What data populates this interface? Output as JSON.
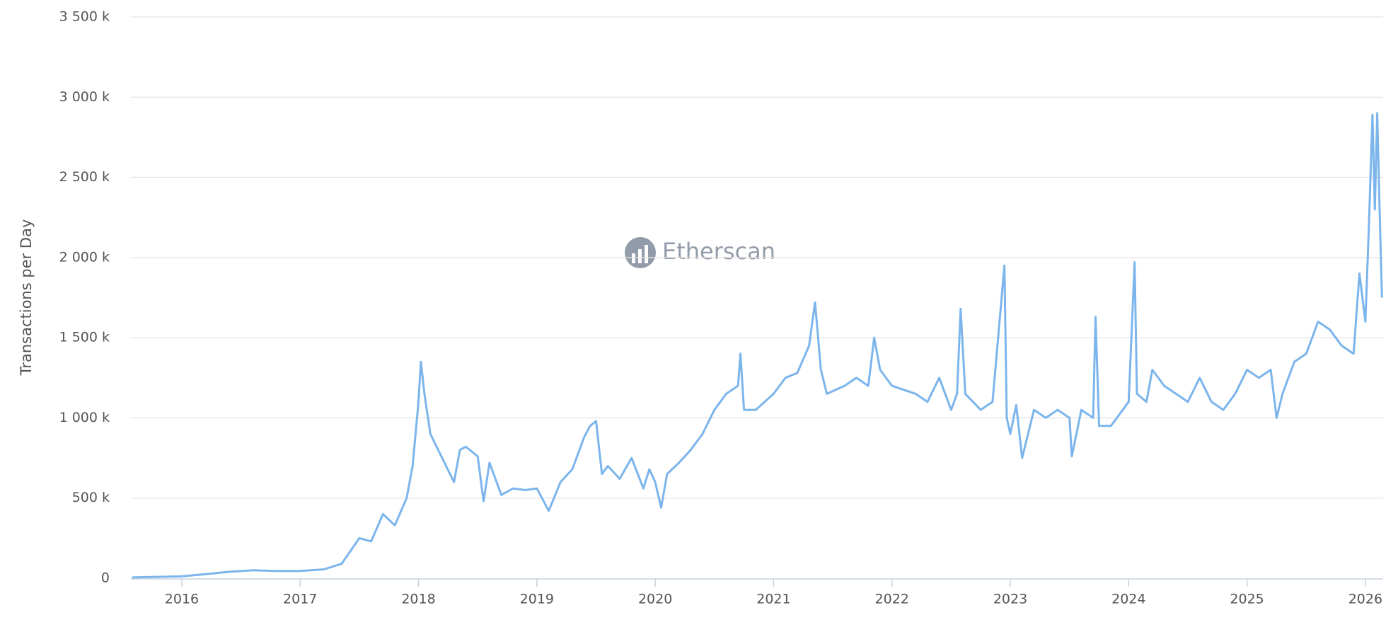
{
  "chart_data": {
    "type": "line",
    "y_label": "Transactions per Day",
    "watermark": "Etherscan",
    "color": "#7cb5ec",
    "grid": true,
    "xlim": [
      2015.57,
      2026.15
    ],
    "xticks": [
      2016,
      2017,
      2018,
      2019,
      2020,
      2021,
      2022,
      2023,
      2024,
      2025,
      2026
    ],
    "ylim": [
      0,
      3500
    ],
    "yticks": [
      0,
      {
        "value": 500,
        "label": "500 k"
      },
      {
        "value": 1000,
        "label": "1 000 k"
      },
      {
        "value": 1500,
        "label": "1 500 k"
      },
      {
        "value": 2000,
        "label": "2 000 k"
      },
      {
        "value": 2500,
        "label": "2 500 k"
      },
      {
        "value": 3000,
        "label": "3 000 k"
      },
      {
        "value": 3500,
        "label": "3 500 k"
      }
    ],
    "x": [
      2015.58,
      2015.75,
      2016.0,
      2016.2,
      2016.4,
      2016.6,
      2016.8,
      2017.0,
      2017.2,
      2017.35,
      2017.5,
      2017.6,
      2017.7,
      2017.8,
      2017.9,
      2017.95,
      2018.0,
      2018.02,
      2018.05,
      2018.1,
      2018.2,
      2018.3,
      2018.35,
      2018.4,
      2018.5,
      2018.55,
      2018.6,
      2018.7,
      2018.8,
      2018.9,
      2019.0,
      2019.1,
      2019.2,
      2019.3,
      2019.4,
      2019.45,
      2019.5,
      2019.55,
      2019.6,
      2019.7,
      2019.8,
      2019.9,
      2019.95,
      2020.0,
      2020.05,
      2020.1,
      2020.2,
      2020.3,
      2020.4,
      2020.5,
      2020.6,
      2020.7,
      2020.72,
      2020.75,
      2020.85,
      2021.0,
      2021.1,
      2021.2,
      2021.3,
      2021.35,
      2021.4,
      2021.45,
      2021.6,
      2021.7,
      2021.8,
      2021.85,
      2021.9,
      2022.0,
      2022.2,
      2022.3,
      2022.4,
      2022.5,
      2022.55,
      2022.58,
      2022.62,
      2022.75,
      2022.85,
      2022.95,
      2022.97,
      2023.0,
      2023.05,
      2023.1,
      2023.2,
      2023.3,
      2023.4,
      2023.5,
      2023.52,
      2023.6,
      2023.7,
      2023.72,
      2023.75,
      2023.85,
      2024.0,
      2024.05,
      2024.07,
      2024.15,
      2024.2,
      2024.3,
      2024.4,
      2024.5,
      2024.6,
      2024.7,
      2024.8,
      2024.9,
      2025.0,
      2025.1,
      2025.2,
      2025.25,
      2025.3,
      2025.4,
      2025.5,
      2025.6,
      2025.7,
      2025.8,
      2025.9,
      2025.95,
      2026.0,
      2026.03,
      2026.06,
      2026.08,
      2026.1,
      2026.12,
      2026.14
    ],
    "values": [
      5,
      8,
      12,
      25,
      40,
      50,
      45,
      45,
      55,
      90,
      250,
      230,
      400,
      330,
      500,
      700,
      1100,
      1350,
      1150,
      900,
      750,
      600,
      800,
      820,
      760,
      480,
      720,
      520,
      560,
      550,
      560,
      420,
      600,
      680,
      880,
      950,
      980,
      650,
      700,
      620,
      750,
      560,
      680,
      600,
      440,
      650,
      720,
      800,
      900,
      1050,
      1150,
      1200,
      1400,
      1050,
      1050,
      1150,
      1250,
      1280,
      1450,
      1720,
      1300,
      1150,
      1200,
      1250,
      1200,
      1500,
      1300,
      1200,
      1150,
      1100,
      1250,
      1050,
      1150,
      1680,
      1150,
      1050,
      1100,
      1950,
      1000,
      900,
      1080,
      750,
      1050,
      1000,
      1050,
      1000,
      760,
      1050,
      1000,
      1630,
      950,
      950,
      1100,
      1970,
      1150,
      1100,
      1300,
      1200,
      1150,
      1100,
      1250,
      1100,
      1050,
      1150,
      1300,
      1250,
      1300,
      1000,
      1150,
      1350,
      1400,
      1600,
      1550,
      1450,
      1400,
      1900,
      1600,
      2200,
      2890,
      2300,
      2900,
      2300,
      1750
    ]
  }
}
